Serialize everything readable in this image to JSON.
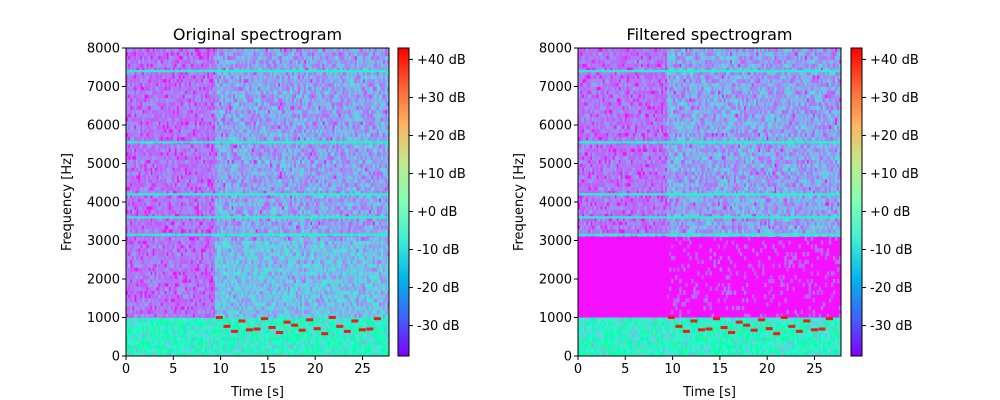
{
  "chart_data": [
    {
      "type": "heatmap",
      "title": "Original spectrogram",
      "xlabel": "Time [s]",
      "ylabel": "Frequency [Hz]",
      "xlim": [
        0,
        27.8
      ],
      "ylim": [
        0,
        8000
      ],
      "xticks": [
        0,
        5,
        10,
        15,
        20,
        25
      ],
      "yticks": [
        0,
        1000,
        2000,
        3000,
        4000,
        5000,
        6000,
        7000,
        8000
      ],
      "colorbar": {
        "label_format": "%+2.0f dB",
        "range": [
          -38,
          43
        ],
        "ticks": [
          -30,
          -20,
          -10,
          0,
          10,
          20,
          30,
          40
        ],
        "tick_labels": [
          "-30 dB",
          "-20 dB",
          "-10 dB",
          "+0 dB",
          "+10 dB",
          "+20 dB",
          "+30 dB",
          "+40 dB"
        ],
        "colormap": "rainbow"
      },
      "features": {
        "horizontal_lines_hz": [
          3150,
          3600,
          4200,
          5550,
          7400
        ],
        "harmonic_notes_section_start_s": 9.3,
        "strong_tones_hz": [
          1000,
          800,
          700
        ],
        "low_frequency_band_hz": [
          0,
          1000
        ]
      }
    },
    {
      "type": "heatmap",
      "title": "Filtered spectrogram",
      "xlabel": "Time [s]",
      "ylabel": "Frequency [Hz]",
      "xlim": [
        0,
        27.8
      ],
      "ylim": [
        0,
        8000
      ],
      "xticks": [
        0,
        5,
        10,
        15,
        20,
        25
      ],
      "yticks": [
        0,
        1000,
        2000,
        3000,
        4000,
        5000,
        6000,
        7000,
        8000
      ],
      "colorbar": {
        "label_format": "%+2.0f dB",
        "range": [
          -38,
          43
        ],
        "ticks": [
          -30,
          -20,
          -10,
          0,
          10,
          20,
          30,
          40
        ],
        "tick_labels": [
          "-30 dB",
          "-20 dB",
          "-10 dB",
          "+0 dB",
          "+10 dB",
          "+20 dB",
          "+30 dB",
          "+40 dB"
        ],
        "colormap": "rainbow"
      },
      "features": {
        "filtered_band_hz": [
          1000,
          3100
        ],
        "horizontal_lines_hz": [
          3150,
          3600,
          4200,
          5550,
          7400
        ],
        "harmonic_notes_section_start_s": 9.3,
        "low_frequency_band_hz": [
          0,
          1000
        ]
      }
    }
  ]
}
